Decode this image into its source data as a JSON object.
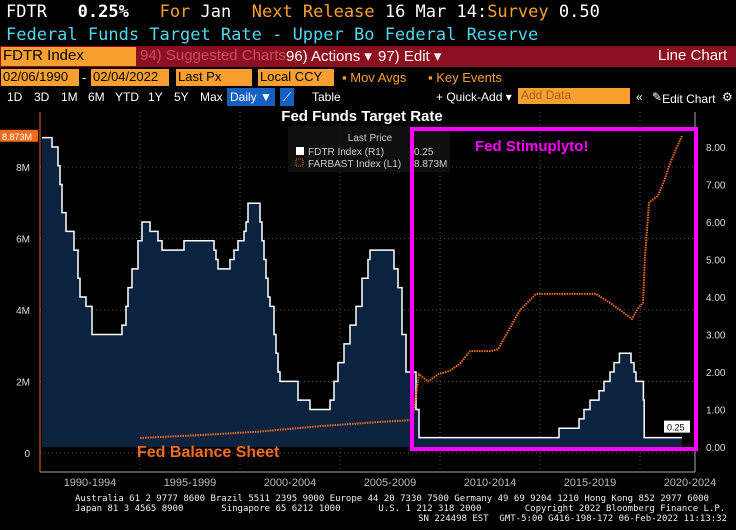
{
  "header": {
    "ticker": "FDTR",
    "value": "0.25%",
    "for_label": "For",
    "period": "Jan",
    "next_release_label": "Next Release",
    "next_release": "16 Mar 14:",
    "survey_label": "Survey",
    "survey": "0.50",
    "description": "Federal Funds Target Rate - Upper Bo Federal Reserve"
  },
  "toolbar": {
    "security": "FDTR Index",
    "suggested": "94) Suggested Charts",
    "actions": "96) Actions ▾",
    "edit": "97) Edit ▾",
    "chart_type": "Line Chart",
    "start_date": "02/06/1990",
    "end_date": "02/04/2022",
    "field": "Last Px",
    "currency": "Local CCY",
    "mov_avgs": "Mov Avgs",
    "key_events": "Key Events",
    "periods": [
      "1D",
      "3D",
      "1M",
      "6M",
      "YTD",
      "1Y",
      "5Y",
      "Max"
    ],
    "frequency": "Daily ▼",
    "table": "Table",
    "quick_add": "+ Quick-Add ▾",
    "add_data_placeholder": "Add Data",
    "edit_chart": "Edit Chart"
  },
  "footer": {
    "line1": "Australia 61 2 9777 8600 Brazil 5511 2395 9000 Europe 44 20 7330 7500 Germany 49 69 9204 1210 Hong Kong 852 2977 6000",
    "line2": "Japan 81 3 4565 8900       Singapore 65 6212 1000       U.S. 1 212 318 2000        Copyright 2022 Bloomberg Finance L.P.",
    "line3": "SN 224498 EST  GMT-5:00 G416-198-172 06-Feb-2022 11:13:32"
  },
  "colors": {
    "fdtr": "#ffffff",
    "farbast": "#f26b1d",
    "area": "#0c2340",
    "highlight": "#ff00ff",
    "accent": "#f7a030"
  },
  "chart_data": {
    "type": "line",
    "title": "Fed Funds Target Rate",
    "legend_header": "Last Price",
    "legend_placement": "top-center",
    "grid": true,
    "xlim": [
      1990.1,
      2022.1
    ],
    "x_tick_labels": [
      "1990-1994",
      "1995-1999",
      "2000-2004",
      "2005-2009",
      "2010-2014",
      "2015-2019",
      "2020-2024"
    ],
    "left_axis": {
      "ylim": [
        0,
        8.873
      ],
      "tick_labels": [
        "0",
        "2M",
        "4M",
        "6M",
        "8M"
      ],
      "last": "8.873M"
    },
    "right_axis": {
      "ylim": [
        0,
        8.25
      ],
      "tick_labels": [
        "0.00",
        "1.00",
        "2.00",
        "3.00",
        "4.00",
        "5.00",
        "6.00",
        "7.00",
        "8.00"
      ],
      "last": "0.25"
    },
    "annotations": {
      "stimulus": "Fed Stimuplyto!",
      "balance_sheet": "Fed Balance Sheet"
    },
    "series": [
      {
        "name": "FDTR Index (R1)",
        "legend_value": "0.25",
        "axis": "right",
        "step": true,
        "points": [
          [
            1990.1,
            8.25
          ],
          [
            1990.6,
            8.0
          ],
          [
            1990.9,
            7.5
          ],
          [
            1991.0,
            7.0
          ],
          [
            1991.1,
            6.25
          ],
          [
            1991.3,
            5.75
          ],
          [
            1991.7,
            5.25
          ],
          [
            1991.9,
            4.5
          ],
          [
            1992.0,
            4.0
          ],
          [
            1992.3,
            3.75
          ],
          [
            1992.6,
            3.0
          ],
          [
            1994.1,
            3.25
          ],
          [
            1994.3,
            3.75
          ],
          [
            1994.4,
            4.25
          ],
          [
            1994.6,
            4.75
          ],
          [
            1994.9,
            5.5
          ],
          [
            1995.1,
            6.0
          ],
          [
            1995.5,
            5.75
          ],
          [
            1995.9,
            5.5
          ],
          [
            1996.1,
            5.25
          ],
          [
            1997.2,
            5.5
          ],
          [
            1998.7,
            5.25
          ],
          [
            1998.8,
            5.0
          ],
          [
            1998.9,
            4.75
          ],
          [
            1999.5,
            5.0
          ],
          [
            1999.7,
            5.25
          ],
          [
            1999.9,
            5.5
          ],
          [
            2000.2,
            5.75
          ],
          [
            2000.3,
            6.0
          ],
          [
            2000.4,
            6.5
          ],
          [
            2001.0,
            6.0
          ],
          [
            2001.1,
            5.5
          ],
          [
            2001.2,
            5.0
          ],
          [
            2001.3,
            4.5
          ],
          [
            2001.4,
            4.0
          ],
          [
            2001.5,
            3.75
          ],
          [
            2001.7,
            3.0
          ],
          [
            2001.8,
            2.5
          ],
          [
            2001.9,
            2.0
          ],
          [
            2002.0,
            1.75
          ],
          [
            2002.9,
            1.25
          ],
          [
            2003.5,
            1.0
          ],
          [
            2004.5,
            1.25
          ],
          [
            2004.7,
            1.75
          ],
          [
            2004.9,
            2.25
          ],
          [
            2005.2,
            2.75
          ],
          [
            2005.5,
            3.25
          ],
          [
            2005.8,
            3.75
          ],
          [
            2006.1,
            4.5
          ],
          [
            2006.4,
            5.0
          ],
          [
            2006.5,
            5.25
          ],
          [
            2007.7,
            4.75
          ],
          [
            2007.9,
            4.25
          ],
          [
            2008.1,
            3.0
          ],
          [
            2008.3,
            2.0
          ],
          [
            2008.8,
            1.0
          ],
          [
            2008.95,
            0.25
          ],
          [
            2015.95,
            0.5
          ],
          [
            2016.95,
            0.75
          ],
          [
            2017.2,
            1.0
          ],
          [
            2017.5,
            1.25
          ],
          [
            2017.95,
            1.5
          ],
          [
            2018.2,
            1.75
          ],
          [
            2018.5,
            2.0
          ],
          [
            2018.7,
            2.25
          ],
          [
            2018.97,
            2.5
          ],
          [
            2019.55,
            2.25
          ],
          [
            2019.7,
            2.0
          ],
          [
            2019.8,
            1.75
          ],
          [
            2020.17,
            1.25
          ],
          [
            2020.21,
            0.25
          ],
          [
            2022.1,
            0.25
          ]
        ]
      },
      {
        "name": "FARBAST Index (L1)",
        "legend_value": "8.873M",
        "axis": "left",
        "points": [
          [
            1995.0,
            0.42
          ],
          [
            1998.0,
            0.5
          ],
          [
            2001.0,
            0.6
          ],
          [
            2004.0,
            0.75
          ],
          [
            2007.0,
            0.87
          ],
          [
            2008.6,
            0.92
          ],
          [
            2008.8,
            1.6
          ],
          [
            2008.95,
            2.2
          ],
          [
            2009.4,
            2.0
          ],
          [
            2009.9,
            2.2
          ],
          [
            2010.5,
            2.3
          ],
          [
            2011.0,
            2.5
          ],
          [
            2011.5,
            2.85
          ],
          [
            2012.5,
            2.85
          ],
          [
            2012.9,
            2.9
          ],
          [
            2013.5,
            3.5
          ],
          [
            2014.0,
            4.0
          ],
          [
            2014.8,
            4.45
          ],
          [
            2016.0,
            4.45
          ],
          [
            2017.8,
            4.45
          ],
          [
            2018.5,
            4.2
          ],
          [
            2019.0,
            4.0
          ],
          [
            2019.6,
            3.75
          ],
          [
            2019.9,
            4.05
          ],
          [
            2020.15,
            4.2
          ],
          [
            2020.25,
            5.5
          ],
          [
            2020.45,
            7.0
          ],
          [
            2020.9,
            7.2
          ],
          [
            2021.2,
            7.6
          ],
          [
            2021.5,
            8.1
          ],
          [
            2021.8,
            8.5
          ],
          [
            2022.1,
            8.873
          ]
        ]
      }
    ]
  }
}
